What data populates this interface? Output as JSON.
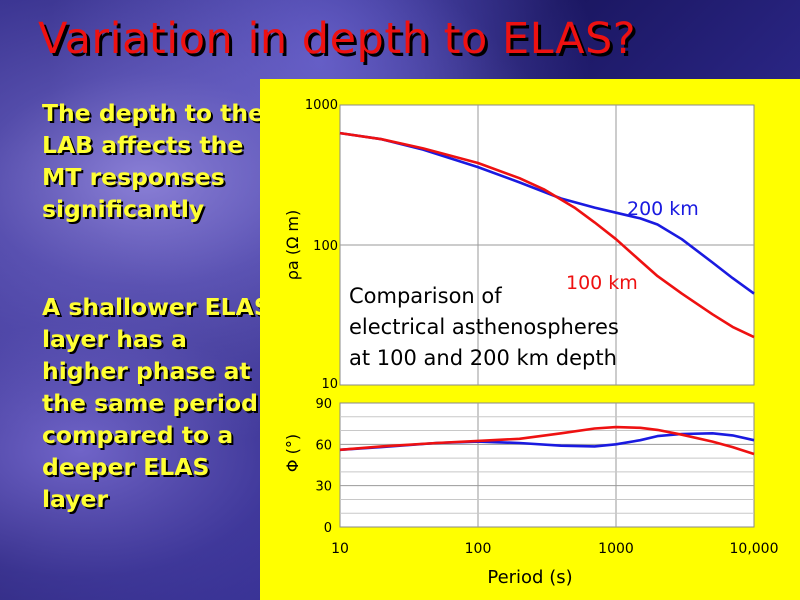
{
  "slide": {
    "title": "Variation in depth to ELAS?",
    "bullets": [
      "The depth to the LAB affects the MT responses significantly",
      "A shallower ELAS layer has a higher phase at the same period compared to a deeper ELAS layer"
    ],
    "colors": {
      "title": "#ee1111",
      "bullets": "#ffff33",
      "panel": "#ffff00"
    }
  },
  "chart_data": [
    {
      "type": "line",
      "panel": "apparent-resistivity",
      "ylabel": "ρa (Ω m)",
      "xscale": "log",
      "yscale": "log",
      "xlim": [
        10,
        10000
      ],
      "ylim": [
        10,
        1000
      ],
      "y_ticks": [
        "1000",
        "100",
        "10"
      ],
      "annotation": "Comparison of electrical asthenospheres at 100 and 200 km depth",
      "annotation_lines": [
        "Comparison of",
        "electrical asthenospheres",
        "at 100 and 200 km depth"
      ],
      "grid": true,
      "series": [
        {
          "name": "200 km",
          "color": "#1a1ae0",
          "x": [
            10,
            20,
            40,
            100,
            200,
            400,
            700,
            1000,
            1500,
            2000,
            3000,
            5000,
            7000,
            10000
          ],
          "y": [
            630,
            570,
            480,
            360,
            280,
            215,
            185,
            170,
            155,
            140,
            110,
            75,
            58,
            45
          ]
        },
        {
          "name": "100 km",
          "color": "#ee1111",
          "x": [
            10,
            20,
            40,
            100,
            200,
            300,
            500,
            700,
            1000,
            1500,
            2000,
            3000,
            5000,
            7000,
            10000
          ],
          "y": [
            630,
            570,
            490,
            385,
            300,
            250,
            185,
            145,
            110,
            77,
            60,
            45,
            32,
            26,
            22
          ]
        }
      ]
    },
    {
      "type": "line",
      "panel": "phase",
      "ylabel": "Φ (°)",
      "xlabel": "Period (s)",
      "xscale": "log",
      "xlim": [
        10,
        10000
      ],
      "ylim": [
        0,
        90
      ],
      "y_ticks": [
        "90",
        "60",
        "30",
        "0"
      ],
      "x_ticks": [
        "10",
        "100",
        "1000",
        "10,000"
      ],
      "grid": true,
      "series": [
        {
          "name": "200 km",
          "color": "#1a1ae0",
          "x": [
            10,
            20,
            50,
            100,
            200,
            400,
            700,
            1000,
            1500,
            2000,
            3000,
            5000,
            7000,
            10000
          ],
          "y": [
            56,
            58,
            61,
            62,
            61,
            59,
            58.5,
            60,
            63,
            66,
            67.5,
            68,
            66.5,
            63
          ]
        },
        {
          "name": "100 km",
          "color": "#ee1111",
          "x": [
            10,
            20,
            50,
            100,
            200,
            400,
            700,
            1000,
            1500,
            2000,
            3000,
            5000,
            7000,
            10000
          ],
          "y": [
            56,
            58.5,
            61,
            62.5,
            64,
            68,
            71.5,
            72.5,
            72,
            70.5,
            67,
            62,
            58,
            53
          ]
        }
      ]
    }
  ]
}
